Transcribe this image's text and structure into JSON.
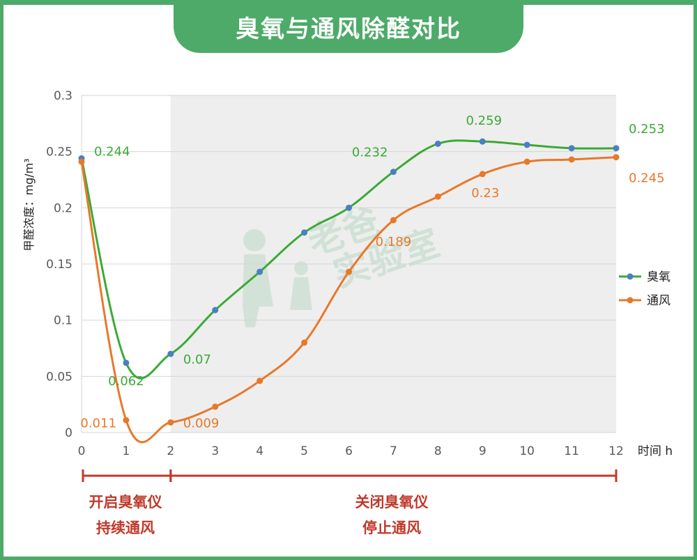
{
  "title": "臭氧与通风除醛对比",
  "watermark": [
    "老爸",
    "实验室"
  ],
  "colors": {
    "brand": "#4daa69",
    "ozone": "#3aaa35",
    "ventilation": "#e8782a",
    "point_marker": "#4a7fc1",
    "phase_bracket": "#c0392b",
    "shaded_region": "#eeeeee"
  },
  "chart_data": {
    "type": "line",
    "ylabel": "甲醛浓度：mg/m³",
    "xlabel": "时间 h",
    "x": [
      0,
      1,
      2,
      3,
      4,
      5,
      6,
      7,
      8,
      9,
      10,
      11,
      12
    ],
    "ylim": [
      0,
      0.3
    ],
    "xlim": [
      0,
      12
    ],
    "yticks": [
      "0",
      "0.05",
      "0.1",
      "0.15",
      "0.2",
      "0.25",
      "0.3"
    ],
    "xticks": [
      "0",
      "1",
      "2",
      "3",
      "4",
      "5",
      "6",
      "7",
      "8",
      "9",
      "10",
      "11",
      "12"
    ],
    "grid": true,
    "legend_position": "right",
    "shaded_x_range": [
      2,
      12
    ],
    "series": [
      {
        "name": "臭氧",
        "values": [
          0.244,
          0.062,
          0.07,
          0.109,
          0.143,
          0.178,
          0.2,
          0.232,
          0.257,
          0.259,
          0.256,
          0.253,
          0.253
        ],
        "labels": [
          {
            "x": 0,
            "text": "0.244"
          },
          {
            "x": 1,
            "text": "0.062"
          },
          {
            "x": 2,
            "text": "0.07"
          },
          {
            "x": 7,
            "text": "0.232"
          },
          {
            "x": 9,
            "text": "0.259"
          },
          {
            "x": 12,
            "text": "0.253"
          }
        ]
      },
      {
        "name": "通风",
        "values": [
          0.241,
          0.011,
          0.009,
          0.023,
          0.046,
          0.08,
          0.143,
          0.189,
          0.21,
          0.23,
          0.241,
          0.243,
          0.245
        ],
        "labels": [
          {
            "x": 1,
            "text": "0.011"
          },
          {
            "x": 2,
            "text": "0.009"
          },
          {
            "x": 7,
            "text": "0.189"
          },
          {
            "x": 9,
            "text": "0.23"
          },
          {
            "x": 12,
            "text": "0.245"
          }
        ]
      }
    ],
    "phases": [
      {
        "x_range": [
          0,
          2
        ],
        "lines": [
          "开启臭氧仪",
          "持续通风"
        ]
      },
      {
        "x_range": [
          2,
          12
        ],
        "lines": [
          "关闭臭氧仪",
          "停止通风"
        ]
      }
    ]
  }
}
